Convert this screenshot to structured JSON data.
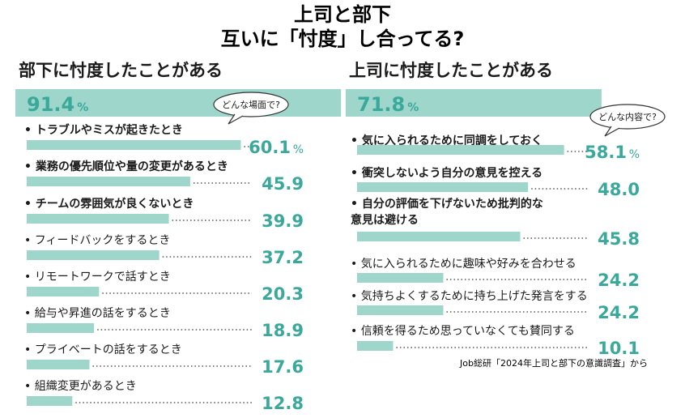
{
  "title": {
    "line1": "上司と部下",
    "line2": "互いに「忖度」し合ってる?"
  },
  "colors": {
    "bar": "#9ed6cc",
    "value": "#3aa89a",
    "text": "#1a1a1a",
    "dots": "#555555"
  },
  "source": "Job総研「2024年上司と部下の意識調査」から",
  "chart_data": [
    {
      "type": "bar",
      "orientation": "horizontal",
      "title": "部下に忖度したことがある",
      "unit": "%",
      "headline_value": 91.4,
      "headline_label": "91.4",
      "callout": "どんな場面で?",
      "xlim": [
        0,
        100
      ],
      "categories": [
        "トラブルやミスが起きたとき",
        "業務の優先順位や量の変更があるとき",
        "チームの雰囲気が良くないとき",
        "フィードバックをするとき",
        "リモートワークで話すとき",
        "給与や昇進の話をするとき",
        "プライベートの話をするとき",
        "組織変更があるとき"
      ],
      "values": [
        60.1,
        45.9,
        39.9,
        37.2,
        20.3,
        18.9,
        17.6,
        12.8
      ],
      "value_labels": [
        "60.1",
        "45.9",
        "39.9",
        "37.2",
        "20.3",
        "18.9",
        "17.6",
        "12.8"
      ]
    },
    {
      "type": "bar",
      "orientation": "horizontal",
      "title": "上司に忖度したことがある",
      "unit": "%",
      "headline_value": 71.8,
      "headline_label": "71.8",
      "callout": "どんな内容で?",
      "xlim": [
        0,
        100
      ],
      "categories": [
        "気に入られるために同調をしておく",
        "衝突しないよう自分の意見を控える",
        "自分の評価を下げないため批判的な\n意見は避ける",
        "気に入られるために趣味や好みを合わせる",
        "気持ちよくするために持ち上げた発言をする",
        "信頼を得るため思っていなくても賛同する"
      ],
      "values": [
        58.1,
        48.0,
        45.8,
        24.2,
        24.2,
        10.1
      ],
      "value_labels": [
        "58.1",
        "48.0",
        "45.8",
        "24.2",
        "24.2",
        "10.1"
      ]
    }
  ]
}
